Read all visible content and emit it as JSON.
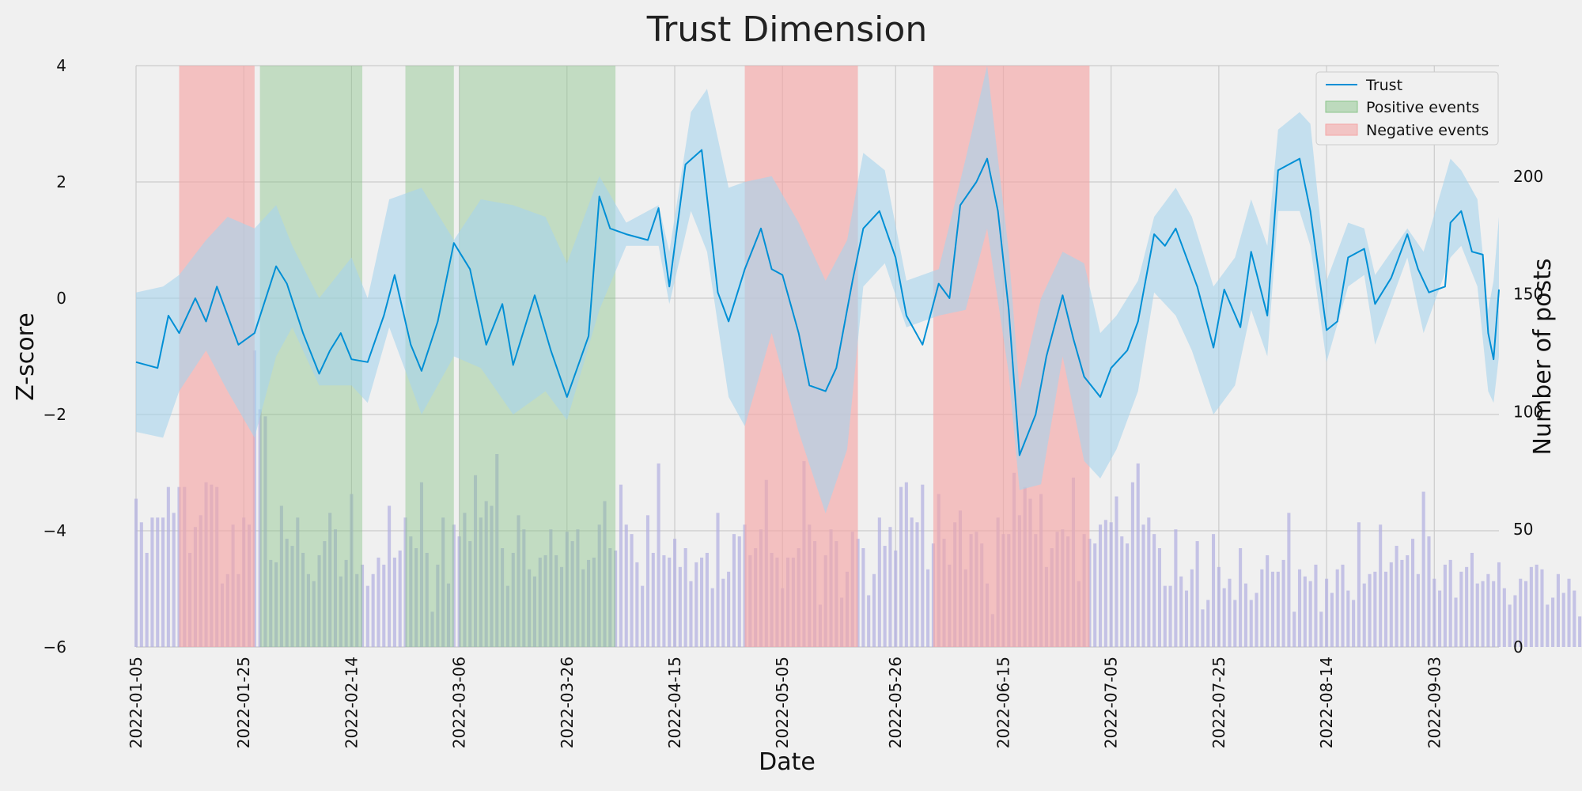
{
  "chart_data": {
    "type": "line",
    "title": "Trust Dimension",
    "xlabel": "Date",
    "ylabel_left": "Z-score",
    "ylabel_right": "Number of posts",
    "x_start": "2022-01-05",
    "x_end": "2022-09-15",
    "x_ticks": [
      "2022-01-05",
      "2022-01-25",
      "2022-02-14",
      "2022-03-06",
      "2022-03-26",
      "2022-04-15",
      "2022-05-05",
      "2022-05-26",
      "2022-06-15",
      "2022-07-05",
      "2022-07-25",
      "2022-08-14",
      "2022-09-03"
    ],
    "ylim_left": [
      -6,
      4
    ],
    "yticks_left": [
      -6,
      -4,
      -2,
      0,
      2,
      4
    ],
    "ylim_right": [
      0,
      247
    ],
    "yticks_right": [
      0,
      50,
      100,
      150,
      200
    ],
    "grid": true,
    "legend": {
      "position": "top-right",
      "entries": [
        {
          "label": "Trust",
          "kind": "line",
          "color": "#008fd5"
        },
        {
          "label": "Positive events",
          "kind": "patch",
          "color": "#8ac48a"
        },
        {
          "label": "Negative events",
          "kind": "patch",
          "color": "#f4a6a6"
        }
      ]
    },
    "colors": {
      "trust_line": "#008fd5",
      "trust_band": "#a6d3ec",
      "positive": "#8ac48a",
      "negative": "#f4a6a6",
      "posts": "#b0aee0"
    },
    "events": {
      "negative": [
        {
          "start": "2022-01-13",
          "end": "2022-01-27"
        },
        {
          "start": "2022-04-28",
          "end": "2022-05-19"
        },
        {
          "start": "2022-06-02",
          "end": "2022-07-01"
        }
      ],
      "positive": [
        {
          "start": "2022-01-28",
          "end": "2022-02-16"
        },
        {
          "start": "2022-02-24",
          "end": "2022-03-05"
        },
        {
          "start": "2022-03-06",
          "end": "2022-04-04"
        }
      ]
    },
    "series": [
      {
        "name": "Trust",
        "axis": "left",
        "points": [
          [
            "2022-01-05",
            -1.1
          ],
          [
            "2022-01-09",
            -1.2
          ],
          [
            "2022-01-11",
            -0.3
          ],
          [
            "2022-01-13",
            -0.6
          ],
          [
            "2022-01-16",
            0.0
          ],
          [
            "2022-01-18",
            -0.4
          ],
          [
            "2022-01-20",
            0.2
          ],
          [
            "2022-01-24",
            -0.8
          ],
          [
            "2022-01-27",
            -0.6
          ],
          [
            "2022-01-31",
            0.55
          ],
          [
            "2022-02-02",
            0.25
          ],
          [
            "2022-02-05",
            -0.6
          ],
          [
            "2022-02-08",
            -1.3
          ],
          [
            "2022-02-10",
            -0.9
          ],
          [
            "2022-02-12",
            -0.6
          ],
          [
            "2022-02-14",
            -1.05
          ],
          [
            "2022-02-17",
            -1.1
          ],
          [
            "2022-02-20",
            -0.3
          ],
          [
            "2022-02-22",
            0.4
          ],
          [
            "2022-02-25",
            -0.8
          ],
          [
            "2022-02-27",
            -1.25
          ],
          [
            "2022-03-02",
            -0.4
          ],
          [
            "2022-03-05",
            0.95
          ],
          [
            "2022-03-08",
            0.5
          ],
          [
            "2022-03-11",
            -0.8
          ],
          [
            "2022-03-14",
            -0.1
          ],
          [
            "2022-03-16",
            -1.15
          ],
          [
            "2022-03-20",
            0.05
          ],
          [
            "2022-03-23",
            -0.9
          ],
          [
            "2022-03-26",
            -1.7
          ],
          [
            "2022-03-30",
            -0.65
          ],
          [
            "2022-04-01",
            1.75
          ],
          [
            "2022-04-03",
            1.2
          ],
          [
            "2022-04-06",
            1.1
          ],
          [
            "2022-04-10",
            1.0
          ],
          [
            "2022-04-12",
            1.55
          ],
          [
            "2022-04-14",
            0.2
          ],
          [
            "2022-04-17",
            2.3
          ],
          [
            "2022-04-20",
            2.55
          ],
          [
            "2022-04-23",
            0.1
          ],
          [
            "2022-04-25",
            -0.4
          ],
          [
            "2022-04-28",
            0.5
          ],
          [
            "2022-05-01",
            1.2
          ],
          [
            "2022-05-03",
            0.5
          ],
          [
            "2022-05-05",
            0.4
          ],
          [
            "2022-05-08",
            -0.6
          ],
          [
            "2022-05-10",
            -1.5
          ],
          [
            "2022-05-13",
            -1.6
          ],
          [
            "2022-05-15",
            -1.2
          ],
          [
            "2022-05-18",
            0.3
          ],
          [
            "2022-05-20",
            1.2
          ],
          [
            "2022-05-23",
            1.5
          ],
          [
            "2022-05-26",
            0.7
          ],
          [
            "2022-05-28",
            -0.3
          ],
          [
            "2022-05-31",
            -0.8
          ],
          [
            "2022-06-03",
            0.25
          ],
          [
            "2022-06-05",
            0.0
          ],
          [
            "2022-06-07",
            1.6
          ],
          [
            "2022-06-10",
            2.0
          ],
          [
            "2022-06-12",
            2.4
          ],
          [
            "2022-06-14",
            1.5
          ],
          [
            "2022-06-16",
            -0.2
          ],
          [
            "2022-06-18",
            -2.7
          ],
          [
            "2022-06-21",
            -2.0
          ],
          [
            "2022-06-23",
            -1.0
          ],
          [
            "2022-06-26",
            0.05
          ],
          [
            "2022-06-28",
            -0.7
          ],
          [
            "2022-06-30",
            -1.35
          ],
          [
            "2022-07-03",
            -1.7
          ],
          [
            "2022-07-05",
            -1.2
          ],
          [
            "2022-07-08",
            -0.9
          ],
          [
            "2022-07-10",
            -0.4
          ],
          [
            "2022-07-13",
            1.1
          ],
          [
            "2022-07-15",
            0.9
          ],
          [
            "2022-07-17",
            1.2
          ],
          [
            "2022-07-21",
            0.2
          ],
          [
            "2022-07-24",
            -0.85
          ],
          [
            "2022-07-26",
            0.15
          ],
          [
            "2022-07-29",
            -0.5
          ],
          [
            "2022-07-31",
            0.8
          ],
          [
            "2022-08-03",
            -0.3
          ],
          [
            "2022-08-05",
            2.2
          ],
          [
            "2022-08-07",
            2.3
          ],
          [
            "2022-08-09",
            2.4
          ],
          [
            "2022-08-11",
            1.5
          ],
          [
            "2022-08-14",
            -0.55
          ],
          [
            "2022-08-16",
            -0.4
          ],
          [
            "2022-08-18",
            0.7
          ],
          [
            "2022-08-21",
            0.85
          ],
          [
            "2022-08-23",
            -0.1
          ],
          [
            "2022-08-26",
            0.35
          ],
          [
            "2022-08-29",
            1.1
          ],
          [
            "2022-08-31",
            0.5
          ],
          [
            "2022-09-02",
            0.1
          ],
          [
            "2022-09-05",
            0.2
          ],
          [
            "2022-09-06",
            1.3
          ],
          [
            "2022-09-08",
            1.5
          ],
          [
            "2022-09-10",
            0.8
          ],
          [
            "2022-09-12",
            0.75
          ],
          [
            "2022-09-13",
            -0.6
          ],
          [
            "2022-09-14",
            -1.05
          ],
          [
            "2022-09-15",
            0.15
          ]
        ]
      }
    ],
    "trust_band": [
      [
        "2022-01-05",
        -2.3,
        0.1
      ],
      [
        "2022-01-10",
        -2.4,
        0.2
      ],
      [
        "2022-01-13",
        -1.6,
        0.4
      ],
      [
        "2022-01-18",
        -0.9,
        1.0
      ],
      [
        "2022-01-22",
        -1.6,
        1.4
      ],
      [
        "2022-01-27",
        -2.4,
        1.2
      ],
      [
        "2022-01-31",
        -1.0,
        1.6
      ],
      [
        "2022-02-03",
        -0.5,
        0.9
      ],
      [
        "2022-02-08",
        -1.5,
        0.0
      ],
      [
        "2022-02-14",
        -1.5,
        0.7
      ],
      [
        "2022-02-17",
        -1.8,
        0.0
      ],
      [
        "2022-02-21",
        -0.5,
        1.7
      ],
      [
        "2022-02-27",
        -2.0,
        1.9
      ],
      [
        "2022-03-05",
        -1.0,
        1.0
      ],
      [
        "2022-03-10",
        -1.2,
        1.7
      ],
      [
        "2022-03-16",
        -2.0,
        1.6
      ],
      [
        "2022-03-22",
        -1.6,
        1.4
      ],
      [
        "2022-03-26",
        -2.1,
        0.6
      ],
      [
        "2022-04-01",
        -0.2,
        2.1
      ],
      [
        "2022-04-06",
        0.9,
        1.3
      ],
      [
        "2022-04-12",
        0.9,
        1.6
      ],
      [
        "2022-04-14",
        -0.1,
        0.8
      ],
      [
        "2022-04-18",
        1.5,
        3.2
      ],
      [
        "2022-04-21",
        0.8,
        3.6
      ],
      [
        "2022-04-25",
        -1.7,
        1.9
      ],
      [
        "2022-04-28",
        -2.2,
        2.0
      ],
      [
        "2022-05-03",
        -0.6,
        2.1
      ],
      [
        "2022-05-08",
        -2.3,
        1.3
      ],
      [
        "2022-05-13",
        -3.7,
        0.3
      ],
      [
        "2022-05-17",
        -2.6,
        1.0
      ],
      [
        "2022-05-20",
        0.2,
        2.5
      ],
      [
        "2022-05-24",
        0.6,
        2.2
      ],
      [
        "2022-05-28",
        -0.5,
        0.3
      ],
      [
        "2022-06-03",
        -0.3,
        0.5
      ],
      [
        "2022-06-08",
        -0.2,
        2.4
      ],
      [
        "2022-06-12",
        1.2,
        4.4
      ],
      [
        "2022-06-16",
        -1.3,
        0.8
      ],
      [
        "2022-06-18",
        -3.3,
        -1.6
      ],
      [
        "2022-06-22",
        -3.2,
        0.0
      ],
      [
        "2022-06-26",
        -1.0,
        0.8
      ],
      [
        "2022-06-30",
        -2.8,
        0.6
      ],
      [
        "2022-07-03",
        -3.1,
        -0.6
      ],
      [
        "2022-07-06",
        -2.6,
        -0.3
      ],
      [
        "2022-07-10",
        -1.6,
        0.3
      ],
      [
        "2022-07-13",
        0.1,
        1.4
      ],
      [
        "2022-07-17",
        -0.3,
        1.9
      ],
      [
        "2022-07-20",
        -0.9,
        1.4
      ],
      [
        "2022-07-24",
        -2.0,
        0.2
      ],
      [
        "2022-07-28",
        -1.5,
        0.7
      ],
      [
        "2022-07-31",
        -0.2,
        1.7
      ],
      [
        "2022-08-03",
        -1.0,
        0.9
      ],
      [
        "2022-08-05",
        1.5,
        2.9
      ],
      [
        "2022-08-09",
        1.5,
        3.2
      ],
      [
        "2022-08-11",
        0.9,
        3.0
      ],
      [
        "2022-08-14",
        -1.1,
        0.3
      ],
      [
        "2022-08-18",
        0.2,
        1.3
      ],
      [
        "2022-08-21",
        0.4,
        1.2
      ],
      [
        "2022-08-23",
        -0.8,
        0.4
      ],
      [
        "2022-08-29",
        0.7,
        1.2
      ],
      [
        "2022-09-01",
        -0.6,
        0.8
      ],
      [
        "2022-09-06",
        0.7,
        2.4
      ],
      [
        "2022-09-08",
        0.9,
        2.2
      ],
      [
        "2022-09-11",
        0.2,
        1.7
      ],
      [
        "2022-09-13",
        -1.6,
        -0.2
      ],
      [
        "2022-09-14",
        -1.8,
        0.3
      ],
      [
        "2022-09-15",
        -1.0,
        1.4
      ]
    ],
    "posts_daily_approx": [
      63,
      53,
      40,
      55,
      55,
      55,
      68,
      57,
      68,
      68,
      40,
      51,
      56,
      70,
      69,
      68,
      27,
      31,
      52,
      31,
      55,
      52,
      126,
      101,
      98,
      37,
      36,
      60,
      46,
      43,
      55,
      40,
      31,
      28,
      39,
      45,
      57,
      50,
      30,
      37,
      65,
      31,
      35,
      26,
      31,
      38,
      35,
      60,
      38,
      41,
      55,
      47,
      42,
      70,
      40,
      15,
      35,
      55,
      27,
      52,
      47,
      57,
      45,
      73,
      55,
      62,
      60,
      82,
      42,
      26,
      40,
      56,
      50,
      33,
      30,
      38,
      39,
      50,
      39,
      34,
      49,
      45,
      50,
      33,
      37,
      38,
      52,
      62,
      42,
      41,
      69,
      52,
      48,
      36,
      26,
      56,
      40,
      78,
      39,
      38,
      46,
      34,
      42,
      28,
      36,
      38,
      40,
      25,
      57,
      29,
      32,
      48,
      47,
      52,
      39,
      42,
      50,
      71,
      40,
      38,
      25,
      38,
      38,
      42,
      79,
      52,
      45,
      18,
      39,
      50,
      45,
      21,
      32,
      49,
      46,
      42,
      22,
      31,
      55,
      43,
      51,
      41,
      68,
      70,
      55,
      53,
      69,
      33,
      44,
      65,
      46,
      35,
      53,
      58,
      33,
      48,
      49,
      44,
      27,
      14,
      55,
      48,
      48,
      74,
      56,
      68,
      63,
      48,
      65,
      34,
      42,
      49,
      50,
      47,
      72,
      28,
      48,
      46,
      44,
      52,
      54,
      53,
      64,
      47,
      44,
      70,
      78,
      52,
      55,
      48,
      42,
      26,
      26,
      50,
      30,
      24,
      33,
      45,
      16,
      20,
      48,
      34,
      25,
      29,
      20,
      42,
      27,
      20,
      23,
      33,
      39,
      32,
      32,
      37,
      57,
      15,
      33,
      30,
      28,
      35,
      15,
      29,
      23,
      33,
      35,
      24,
      20,
      53,
      27,
      31,
      32,
      52,
      32,
      36,
      43,
      37,
      39,
      46,
      31,
      66,
      47,
      29,
      24,
      35,
      37,
      21,
      32,
      34,
      40,
      27,
      28,
      31,
      28,
      36,
      25,
      18,
      22,
      29,
      28,
      34,
      35,
      33,
      18,
      21,
      31,
      23,
      29,
      24,
      13
    ]
  }
}
